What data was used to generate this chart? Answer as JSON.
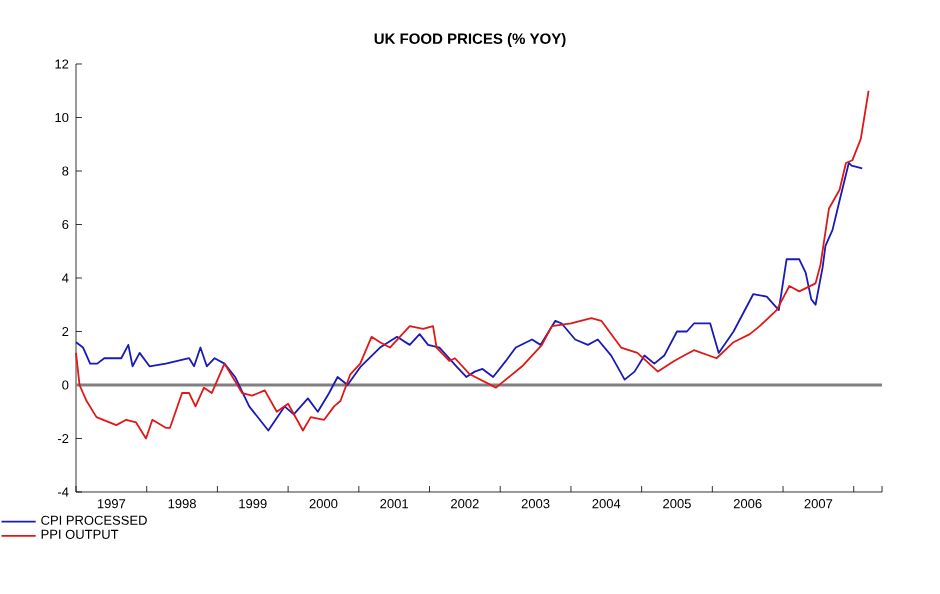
{
  "chart_data": {
    "type": "line",
    "title": "UK FOOD PRICES (% YOY)",
    "xlim": [
      1997,
      2008.4
    ],
    "ylim": [
      -4,
      12
    ],
    "yticks": [
      -4,
      -2,
      0,
      2,
      4,
      6,
      8,
      10,
      12
    ],
    "xticks": [
      {
        "value": 1997,
        "label": null
      },
      {
        "value": 1997.5,
        "label": "1997"
      },
      {
        "value": 1998,
        "label": null
      },
      {
        "value": 1998.5,
        "label": "1998"
      },
      {
        "value": 1999,
        "label": null
      },
      {
        "value": 1999.5,
        "label": "1999"
      },
      {
        "value": 2000,
        "label": null
      },
      {
        "value": 2000.5,
        "label": "2000"
      },
      {
        "value": 2001,
        "label": null
      },
      {
        "value": 2001.5,
        "label": "2001"
      },
      {
        "value": 2002,
        "label": null
      },
      {
        "value": 2002.5,
        "label": "2002"
      },
      {
        "value": 2003,
        "label": null
      },
      {
        "value": 2003.5,
        "label": "2003"
      },
      {
        "value": 2004,
        "label": null
      },
      {
        "value": 2004.5,
        "label": "2004"
      },
      {
        "value": 2005,
        "label": null
      },
      {
        "value": 2005.5,
        "label": "2005"
      },
      {
        "value": 2006,
        "label": null
      },
      {
        "value": 2006.5,
        "label": "2006"
      },
      {
        "value": 2007,
        "label": null
      },
      {
        "value": 2007.5,
        "label": "2007"
      },
      {
        "value": 2008,
        "label": null
      },
      {
        "value": 2008.4,
        "label": null
      }
    ],
    "legend": "bottom left",
    "grid": false,
    "line_style": "solid",
    "ref_lines": [
      {
        "axis": "y",
        "value": 0,
        "color": "#808080"
      }
    ],
    "series": [
      {
        "name": "CPI PROCESSED",
        "color": "#1a1ab8",
        "x": [
          1997.0,
          1997.1,
          1997.2,
          1997.3,
          1997.4,
          1997.64,
          1997.74,
          1997.8,
          1997.9,
          1998.04,
          1998.27,
          1998.6,
          1998.67,
          1998.76,
          1998.85,
          1998.96,
          1999.1,
          1999.25,
          1999.45,
          1999.72,
          1999.95,
          2000.08,
          2000.28,
          2000.42,
          2000.58,
          2000.7,
          2000.84,
          2001.03,
          2001.3,
          2001.54,
          2001.72,
          2001.86,
          2001.98,
          2002.14,
          2002.38,
          2002.52,
          2002.64,
          2002.75,
          2002.9,
          2003.08,
          2003.22,
          2003.45,
          2003.57,
          2003.78,
          2003.87,
          2004.06,
          2004.24,
          2004.38,
          2004.57,
          2004.76,
          2004.9,
          2005.04,
          2005.18,
          2005.32,
          2005.5,
          2005.64,
          2005.74,
          2005.97,
          2006.09,
          2006.3,
          2006.58,
          2006.77,
          2006.94,
          2007.05,
          2007.23,
          2007.32,
          2007.4,
          2007.46,
          2007.56,
          2007.6,
          2007.7,
          2007.8,
          2007.93,
          2007.97,
          2008.12
        ],
        "values": [
          1.6,
          1.4,
          0.8,
          0.8,
          1.0,
          1.0,
          1.5,
          0.7,
          1.2,
          0.7,
          0.8,
          1.0,
          0.7,
          1.4,
          0.7,
          1.0,
          0.8,
          0.3,
          -0.8,
          -1.7,
          -0.8,
          -1.1,
          -0.5,
          -1.0,
          -0.3,
          0.3,
          0.0,
          0.7,
          1.4,
          1.8,
          1.5,
          1.9,
          1.5,
          1.4,
          0.7,
          0.3,
          0.5,
          0.6,
          0.3,
          0.9,
          1.4,
          1.7,
          1.5,
          2.4,
          2.3,
          1.7,
          1.5,
          1.7,
          1.1,
          0.2,
          0.5,
          1.1,
          0.8,
          1.1,
          2.0,
          2.0,
          2.3,
          2.3,
          1.2,
          2.0,
          3.4,
          3.3,
          2.8,
          4.7,
          4.7,
          4.2,
          3.2,
          3.0,
          4.4,
          5.2,
          5.8,
          6.9,
          8.3,
          8.2,
          8.1
        ]
      },
      {
        "name": "PPI OUTPUT",
        "color": "#e01818",
        "x": [
          1997.0,
          1997.05,
          1997.15,
          1997.29,
          1997.57,
          1997.71,
          1997.85,
          1997.99,
          1998.08,
          1998.27,
          1998.33,
          1998.5,
          1998.6,
          1998.69,
          1998.81,
          1998.92,
          1999.1,
          1999.35,
          1999.49,
          1999.67,
          1999.84,
          2000.0,
          2000.21,
          2000.32,
          2000.51,
          2000.65,
          2000.74,
          2000.88,
          2001.02,
          2001.18,
          2001.3,
          2001.44,
          2001.72,
          2001.91,
          2002.05,
          2002.1,
          2002.28,
          2002.36,
          2002.57,
          2002.94,
          2003.31,
          2003.59,
          2003.73,
          2004.0,
          2004.29,
          2004.43,
          2004.71,
          2004.94,
          2005.23,
          2005.46,
          2005.6,
          2005.74,
          2006.06,
          2006.3,
          2006.53,
          2006.67,
          2006.91,
          2007.09,
          2007.23,
          2007.46,
          2007.53,
          2007.65,
          2007.8,
          2007.89,
          2007.98,
          2008.1,
          2008.21
        ],
        "values": [
          1.2,
          0.0,
          -0.6,
          -1.2,
          -1.5,
          -1.3,
          -1.4,
          -2.0,
          -1.3,
          -1.6,
          -1.6,
          -0.3,
          -0.3,
          -0.8,
          -0.1,
          -0.3,
          0.8,
          -0.3,
          -0.4,
          -0.2,
          -1.0,
          -0.7,
          -1.7,
          -1.2,
          -1.3,
          -0.8,
          -0.6,
          0.4,
          0.8,
          1.8,
          1.6,
          1.4,
          2.2,
          2.1,
          2.2,
          1.4,
          0.9,
          1.0,
          0.4,
          -0.1,
          0.7,
          1.5,
          2.2,
          2.3,
          2.5,
          2.4,
          1.4,
          1.2,
          0.5,
          0.9,
          1.1,
          1.3,
          1.0,
          1.6,
          1.9,
          2.2,
          2.8,
          3.7,
          3.5,
          3.8,
          4.5,
          6.6,
          7.3,
          8.3,
          8.4,
          9.2,
          11.0
        ]
      }
    ]
  }
}
